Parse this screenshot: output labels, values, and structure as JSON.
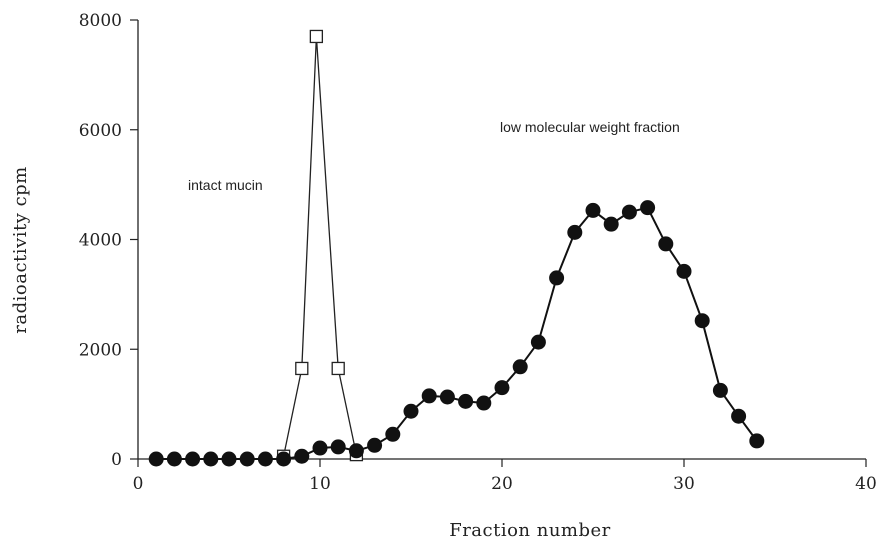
{
  "chart_data": {
    "type": "line",
    "xlabel": "Fraction number",
    "ylabel": "radioactivity cpm",
    "xlim": [
      0,
      40
    ],
    "ylim": [
      0,
      8000
    ],
    "x_ticks": [
      "0",
      "10",
      "20",
      "30",
      "40"
    ],
    "y_ticks": [
      "0",
      "2000",
      "4000",
      "6000",
      "8000"
    ],
    "grid": false,
    "annotations": [
      {
        "text": "intact mucin"
      },
      {
        "text": "low molecular weight fraction"
      }
    ],
    "series": [
      {
        "marker": "open-square",
        "color": "#222222",
        "points": [
          [
            8,
            50
          ],
          [
            9,
            1650
          ],
          [
            9.8,
            7700
          ],
          [
            11,
            1650
          ],
          [
            12,
            80
          ]
        ]
      },
      {
        "marker": "filled-circle",
        "color": "#111111",
        "points": [
          [
            1,
            0
          ],
          [
            2,
            0
          ],
          [
            3,
            0
          ],
          [
            4,
            0
          ],
          [
            5,
            0
          ],
          [
            6,
            0
          ],
          [
            7,
            0
          ],
          [
            8,
            0
          ],
          [
            9,
            50
          ],
          [
            10,
            200
          ],
          [
            11,
            220
          ],
          [
            12,
            150
          ],
          [
            13,
            250
          ],
          [
            14,
            450
          ],
          [
            15,
            870
          ],
          [
            16,
            1150
          ],
          [
            17,
            1130
          ],
          [
            18,
            1050
          ],
          [
            19,
            1020
          ],
          [
            20,
            1300
          ],
          [
            21,
            1680
          ],
          [
            22,
            2130
          ],
          [
            23,
            3300
          ],
          [
            24,
            4130
          ],
          [
            25,
            4530
          ],
          [
            26,
            4280
          ],
          [
            27,
            4500
          ],
          [
            28,
            4580
          ],
          [
            29,
            3920
          ],
          [
            30,
            3420
          ],
          [
            31,
            2520
          ],
          [
            32,
            1250
          ],
          [
            33,
            780
          ],
          [
            34,
            330
          ]
        ]
      }
    ]
  }
}
